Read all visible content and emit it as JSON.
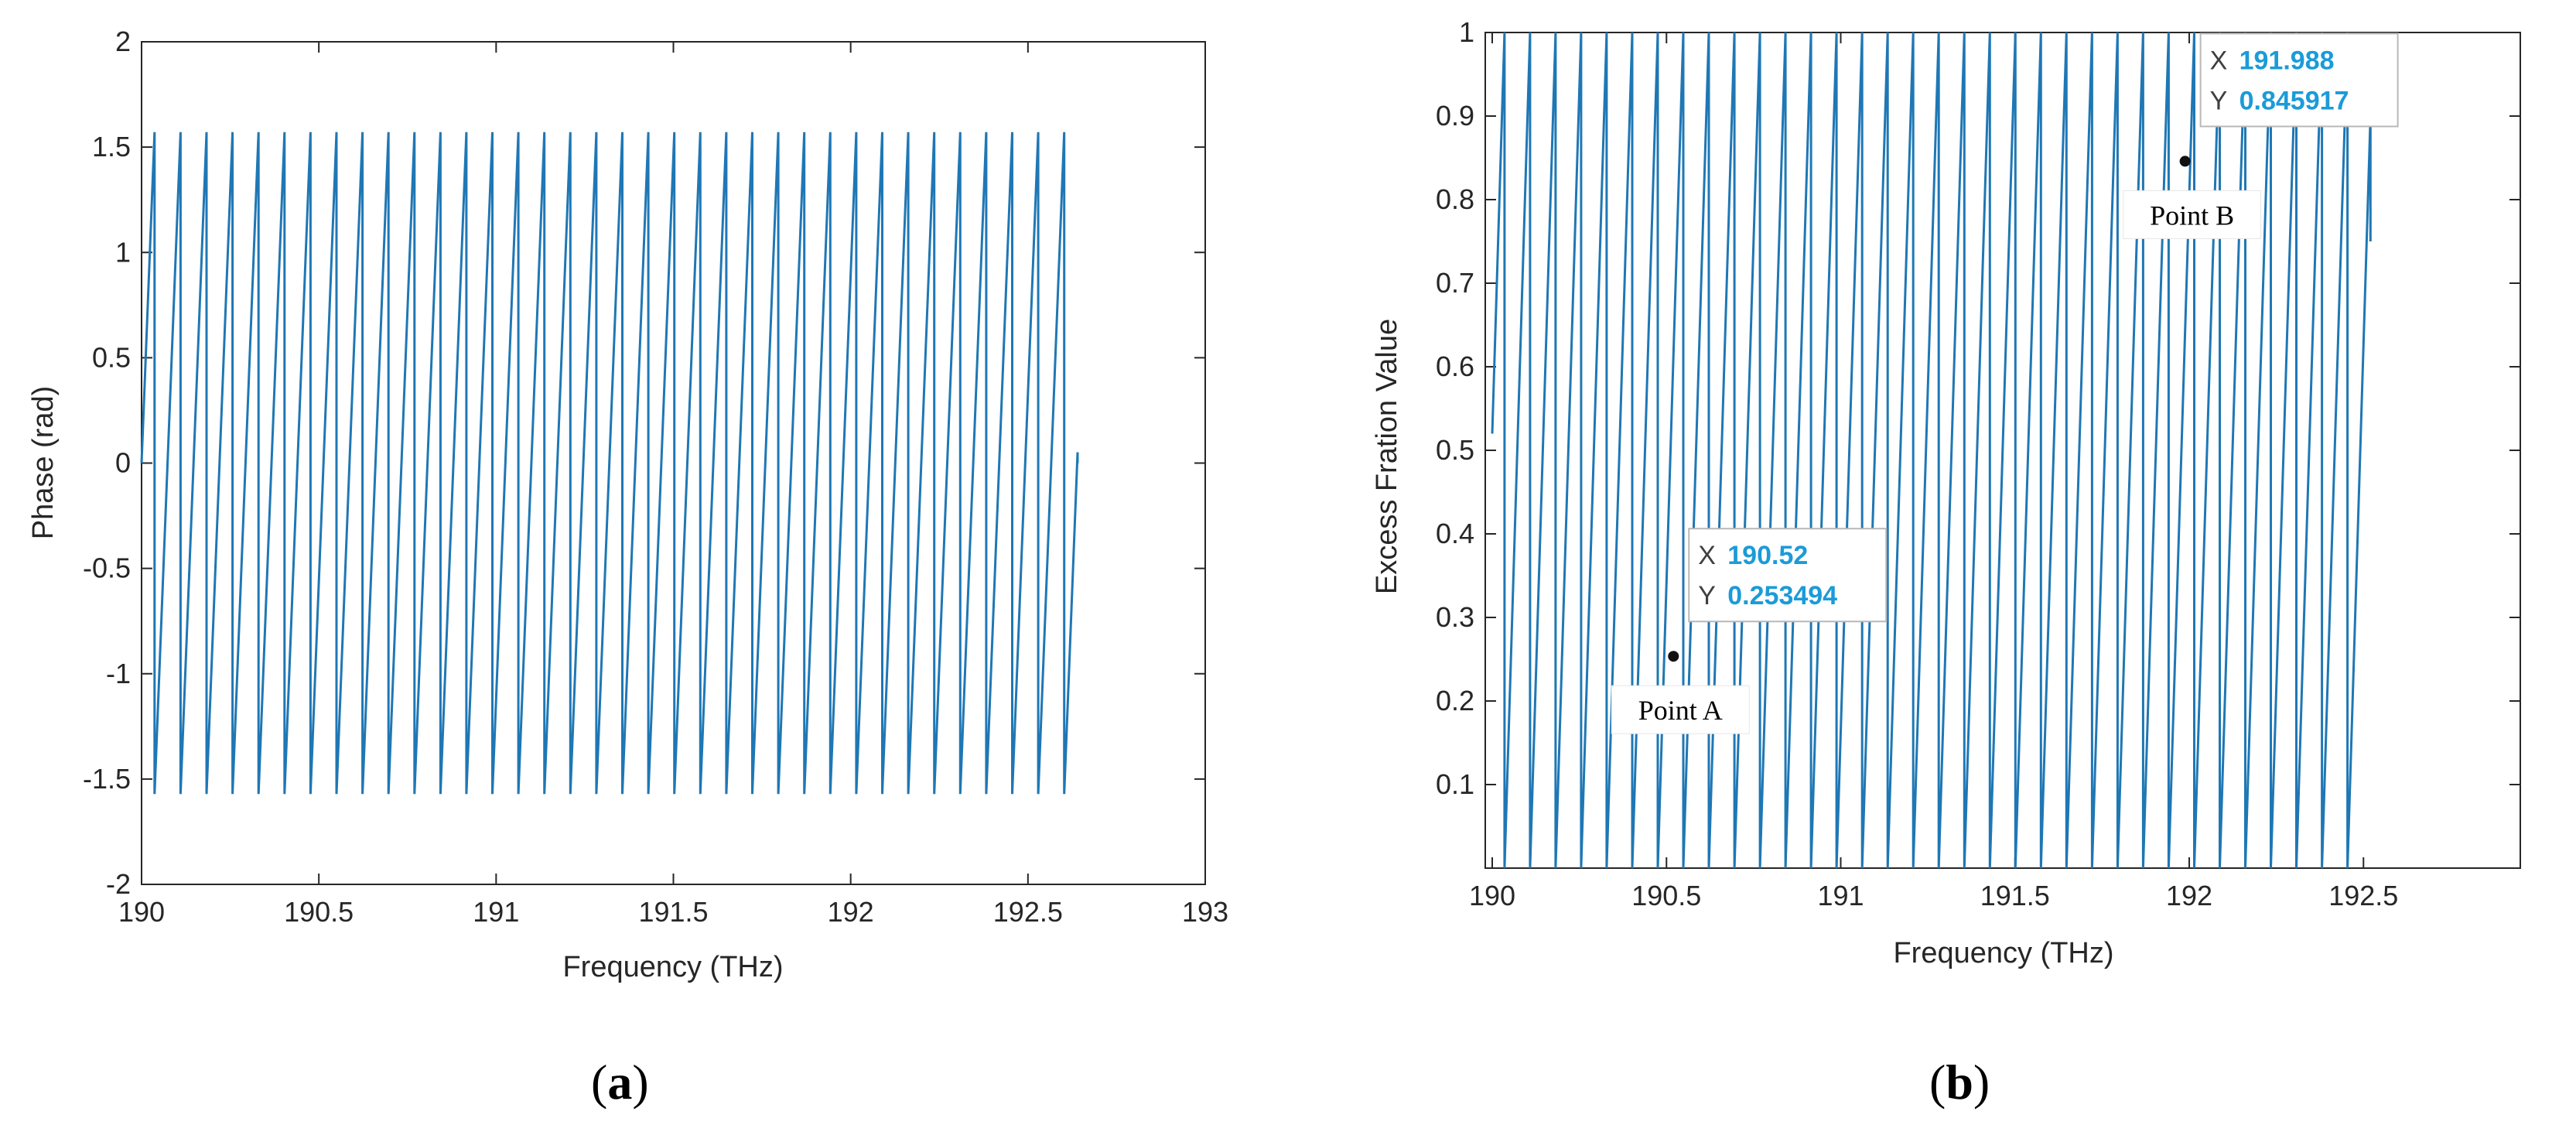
{
  "chart_data": [
    {
      "type": "line",
      "caption": "a",
      "xlabel": "Frequency (THz)",
      "ylabel": "Phase (rad)",
      "xlim": [
        190,
        193
      ],
      "ylim": [
        -2,
        2
      ],
      "xticks": [
        190,
        190.5,
        191,
        191.5,
        192,
        192.5,
        193
      ],
      "xtick_labels": [
        "190",
        "190.5",
        "191",
        "191.5",
        "192",
        "192.5",
        "193"
      ],
      "yticks": [
        2,
        1.5,
        1,
        0.5,
        0,
        -0.5,
        -1,
        -1.5,
        -2
      ],
      "ytick_labels": [
        "2",
        "1.5",
        "1",
        "0.5",
        "0",
        "-0.5",
        "-1",
        "-1.5",
        "-2"
      ],
      "grid": false,
      "line_color": "#1f77b4",
      "series": [
        {
          "waveform": "sawtooth",
          "x_start": 190.0,
          "x_end": 192.64,
          "period": 0.0733,
          "y_start": 0,
          "y_min": -1.5708,
          "y_max": 1.5708,
          "y_end": 0
        }
      ]
    },
    {
      "type": "line",
      "caption": "b",
      "xlabel": "Frequency (THz)",
      "ylabel": "Excess Fration Value",
      "xlim": [
        189.98,
        192.95
      ],
      "ylim": [
        0,
        1
      ],
      "xticks": [
        190,
        190.5,
        191,
        191.5,
        192,
        192.5
      ],
      "xtick_labels": [
        "190",
        "190.5",
        "191",
        "191.5",
        "192",
        "192.5"
      ],
      "yticks": [
        1,
        0.9,
        0.8,
        0.7,
        0.6,
        0.5,
        0.4,
        0.3,
        0.2,
        0.1
      ],
      "ytick_labels": [
        "1",
        "0.9",
        "0.8",
        "0.7",
        "0.6",
        "0.5",
        "0.4",
        "0.3",
        "0.2",
        "0.1"
      ],
      "grid": false,
      "line_color": "#1f77b4",
      "series": [
        {
          "waveform": "sawtooth",
          "x_start": 190.0,
          "x_end": 192.52,
          "period": 0.0733,
          "y_start": 0.52,
          "y_min": 0,
          "y_max": 1,
          "y_end": 0.75
        }
      ],
      "datatips": [
        {
          "name": "Point A",
          "x": 190.52,
          "y": 0.253494,
          "x_text": "190.52",
          "y_text": "0.253494",
          "x_key": "X",
          "y_key": "Y"
        },
        {
          "name": "Point B",
          "x": 191.988,
          "y": 0.845917,
          "x_text": "191.988",
          "y_text": "0.845917",
          "x_key": "X",
          "y_key": "Y"
        }
      ]
    }
  ]
}
